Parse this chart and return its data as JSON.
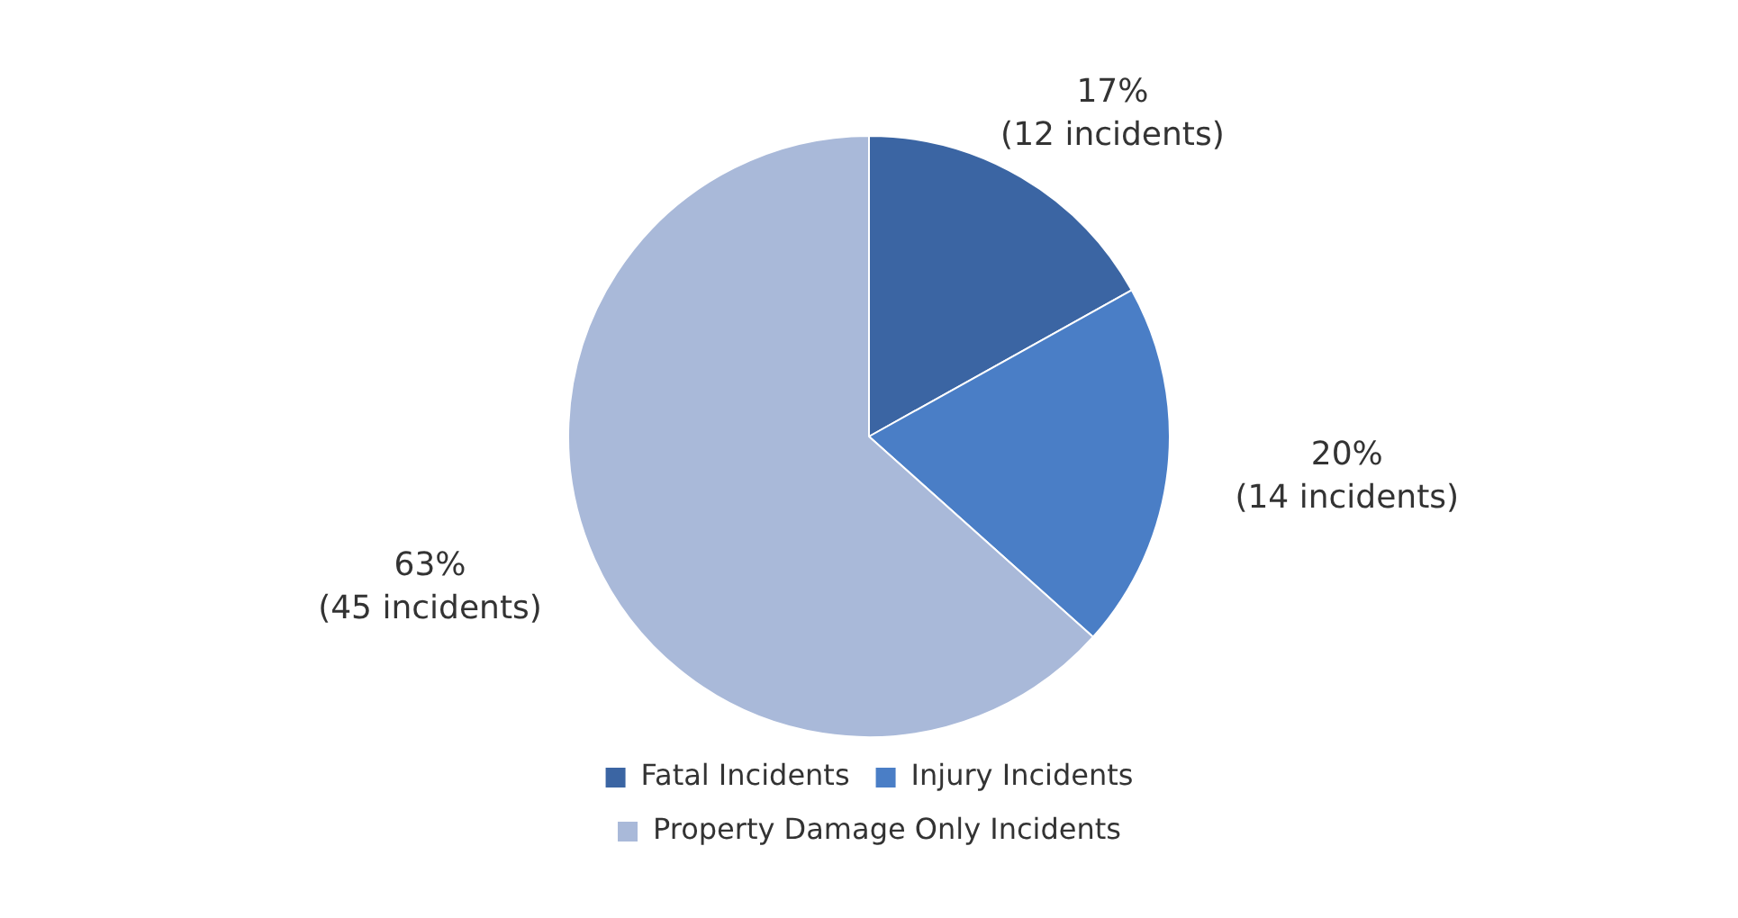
{
  "chart_data": {
    "type": "pie",
    "categories": [
      "Fatal Incidents",
      "Injury Incidents",
      "Property Damage Only Incidents"
    ],
    "values": [
      12,
      14,
      45
    ],
    "value_labels": [
      "17%\n(12 incidents)",
      "20%\n(14 incidents)",
      "63%\n(45 incidents)"
    ],
    "colors": [
      "#3b65a3",
      "#4a7ec6",
      "#a9b9d9"
    ],
    "legend": "bottom"
  }
}
